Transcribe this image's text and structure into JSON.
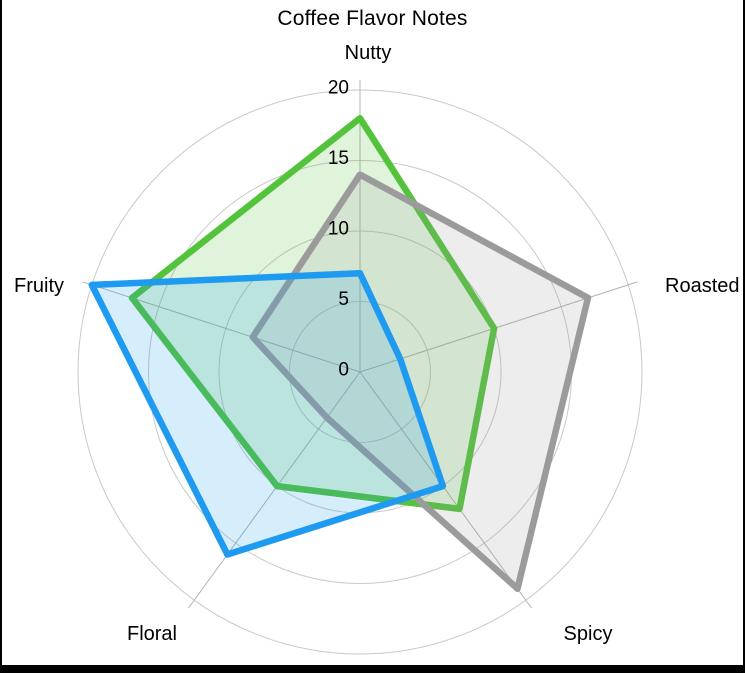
{
  "chart_data": {
    "type": "radar",
    "title": "Coffee Flavor Notes",
    "categories": [
      "Nutty",
      "Roasted",
      "Spicy",
      "Floral",
      "Fruity"
    ],
    "series": [
      {
        "name": "green-series",
        "color": "#54C33C",
        "values": [
          18,
          10,
          12,
          10,
          17
        ]
      },
      {
        "name": "gray-series",
        "color": "#9B9B9B",
        "values": [
          14,
          17,
          19,
          4,
          8
        ]
      },
      {
        "name": "blue-series",
        "color": "#1E9BF0",
        "values": [
          7,
          3,
          10,
          16,
          20
        ]
      }
    ],
    "radial_ticks": [
      0,
      5,
      10,
      15,
      20
    ],
    "radial_range": [
      0,
      20
    ],
    "grid": "circular",
    "legend": "none",
    "colors": {
      "grid_ring": "#C9C9C9",
      "axis_spoke": "#B3B3B3",
      "text": "#000000",
      "background": "#FFFFFF",
      "frame_border": "#000000"
    }
  }
}
